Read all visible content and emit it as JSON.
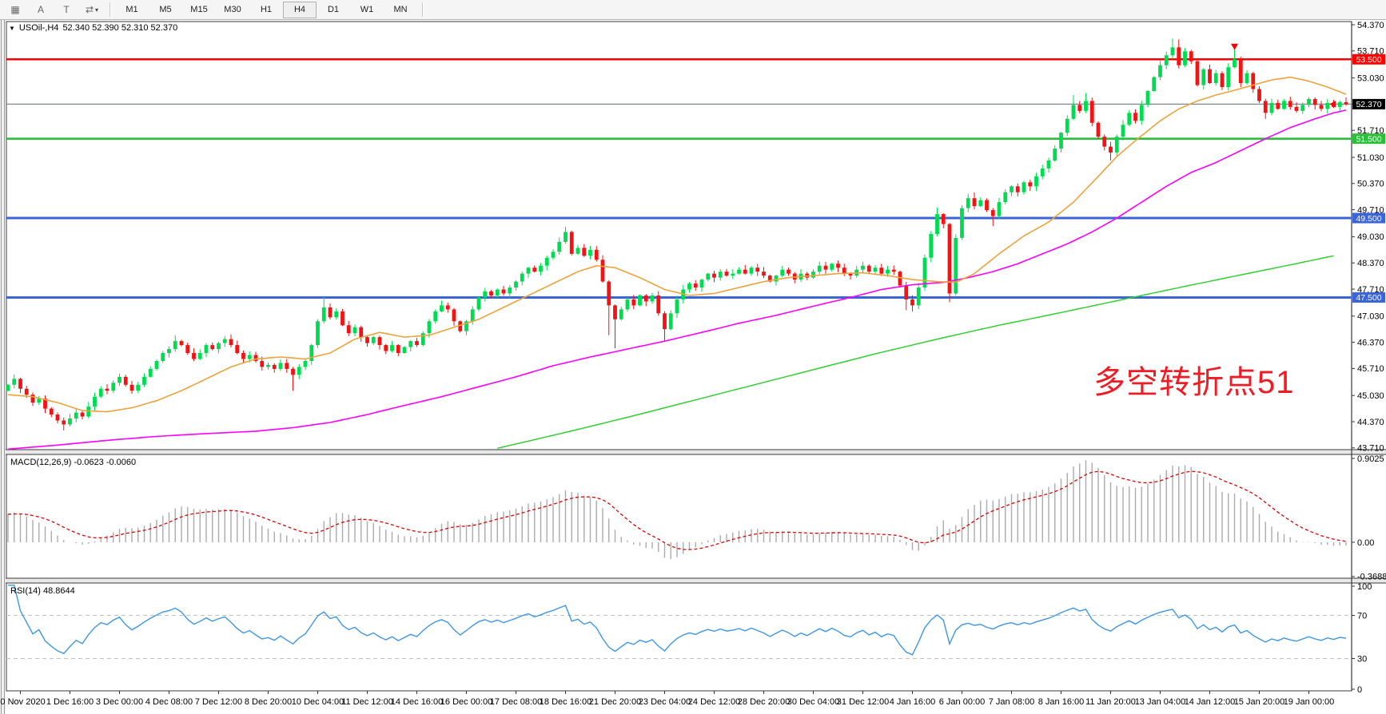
{
  "toolbar": {
    "icons": [
      {
        "name": "grid-icon",
        "glyph": "▦"
      },
      {
        "name": "text-insert-icon",
        "glyph": "A"
      },
      {
        "name": "text-label-icon",
        "glyph": "T"
      },
      {
        "name": "arrows-tool-icon",
        "glyph": "⇄",
        "caret": "▾"
      }
    ],
    "timeframes": [
      "M1",
      "M5",
      "M15",
      "M30",
      "H1",
      "H4",
      "D1",
      "W1",
      "MN"
    ],
    "active_timeframe": "H4"
  },
  "chart": {
    "collapse_arrow": "▼",
    "title_symbol": "USOil-,H4",
    "title_ohlc": "52.340 52.390 52.310 52.370"
  },
  "macd": {
    "label": "MACD(12,26,9) -0.0623 -0.0060",
    "axis": [
      "0.9025",
      "0.00",
      "-0.3688"
    ]
  },
  "rsi": {
    "label": "RSI(14) 48.8644",
    "axis": [
      "100",
      "70",
      "30",
      "0"
    ]
  },
  "annotation": {
    "text": "多空转折点51",
    "color": "#ee1c25"
  },
  "colors": {
    "up": "#00dc50",
    "down": "#f01414",
    "wick_up": "#00c846",
    "wick_down": "#e01010",
    "level_red": "#ff0000",
    "level_green": "#2dbe3c",
    "level_blue": "#3c64d9",
    "bid_line": "#80888f",
    "bid_badge": "#000000",
    "ma_fast": "#eda33c",
    "ma_mid": "#ff00ff",
    "ma_slow": "#32cd32",
    "macd_hist": "#ababab",
    "macd_signal": "#e00000",
    "rsi_line": "#3d96e8",
    "rsi_levels": "#c0c0c0",
    "panel_border": "#3a3a3a",
    "axis_text": "#000000",
    "badge_text": "#ffffff"
  },
  "chart_data": {
    "type": "candlestick",
    "symbol": "USOil",
    "timeframe": "H4",
    "ohlc_current": {
      "open": 52.34,
      "high": 52.39,
      "low": 52.31,
      "close": 52.37
    },
    "y_axis": {
      "min": 43.71,
      "max": 54.37,
      "ticks": [
        "54.370",
        "53.710",
        "53.030",
        "52.370",
        "51.710",
        "51.030",
        "50.370",
        "49.710",
        "49.030",
        "48.370",
        "47.710",
        "47.030",
        "46.370",
        "45.710",
        "45.030",
        "44.370",
        "43.710"
      ]
    },
    "x_axis": {
      "labels": [
        {
          "bar": 2,
          "text": "30 Nov 2020"
        },
        {
          "bar": 10,
          "text": "1 Dec 16:00"
        },
        {
          "bar": 18,
          "text": "3 Dec 00:00"
        },
        {
          "bar": 26,
          "text": "4 Dec 08:00"
        },
        {
          "bar": 34,
          "text": "7 Dec 12:00"
        },
        {
          "bar": 42,
          "text": "8 Dec 20:00"
        },
        {
          "bar": 50,
          "text": "10 Dec 04:00"
        },
        {
          "bar": 58,
          "text": "11 Dec 12:00"
        },
        {
          "bar": 66,
          "text": "14 Dec 16:00"
        },
        {
          "bar": 74,
          "text": "16 Dec 00:00"
        },
        {
          "bar": 82,
          "text": "17 Dec 08:00"
        },
        {
          "bar": 90,
          "text": "18 Dec 16:00"
        },
        {
          "bar": 98,
          "text": "21 Dec 20:00"
        },
        {
          "bar": 106,
          "text": "23 Dec 04:00"
        },
        {
          "bar": 114,
          "text": "24 Dec 12:00"
        },
        {
          "bar": 122,
          "text": "28 Dec 20:00"
        },
        {
          "bar": 130,
          "text": "30 Dec 04:00"
        },
        {
          "bar": 138,
          "text": "31 Dec 12:00"
        },
        {
          "bar": 146,
          "text": "4 Jan 16:00"
        },
        {
          "bar": 154,
          "text": "6 Jan 00:00"
        },
        {
          "bar": 162,
          "text": "7 Jan 08:00"
        },
        {
          "bar": 170,
          "text": "8 Jan 16:00"
        },
        {
          "bar": 178,
          "text": "11 Jan 20:00"
        },
        {
          "bar": 186,
          "text": "13 Jan 04:00"
        },
        {
          "bar": 194,
          "text": "14 Jan 12:00"
        },
        {
          "bar": 202,
          "text": "15 Jan 20:00"
        },
        {
          "bar": 210,
          "text": "19 Jan 00:00"
        }
      ]
    },
    "levels": [
      {
        "label": "53.500",
        "price": 53.5,
        "colorKey": "level_red",
        "width": 2.6
      },
      {
        "label": "51.500",
        "price": 51.5,
        "colorKey": "level_green",
        "width": 2.6
      },
      {
        "label": "49.500",
        "price": 49.5,
        "colorKey": "level_blue",
        "width": 3
      },
      {
        "label": "47.500",
        "price": 47.5,
        "colorKey": "level_blue",
        "width": 3
      }
    ],
    "bid": {
      "label": "52.370",
      "price": 52.37
    },
    "first_open": 45.15,
    "closes": [
      45.3,
      45.45,
      45.2,
      45.05,
      44.85,
      44.95,
      44.7,
      44.55,
      44.4,
      44.3,
      44.45,
      44.6,
      44.5,
      44.75,
      45.0,
      45.2,
      45.15,
      45.35,
      45.5,
      45.3,
      45.15,
      45.3,
      45.5,
      45.7,
      45.9,
      46.1,
      46.2,
      46.4,
      46.3,
      46.1,
      45.95,
      46.1,
      46.3,
      46.2,
      46.35,
      46.45,
      46.3,
      46.1,
      45.95,
      46.05,
      45.9,
      45.75,
      45.8,
      45.7,
      45.85,
      45.7,
      45.55,
      45.75,
      45.9,
      46.3,
      46.9,
      47.25,
      47.0,
      47.15,
      46.8,
      46.6,
      46.75,
      46.5,
      46.35,
      46.5,
      46.3,
      46.15,
      46.3,
      46.1,
      46.25,
      46.4,
      46.3,
      46.6,
      46.9,
      47.15,
      47.3,
      47.2,
      46.9,
      46.65,
      46.9,
      47.2,
      47.5,
      47.65,
      47.55,
      47.7,
      47.6,
      47.75,
      47.9,
      48.1,
      48.25,
      48.15,
      48.3,
      48.5,
      48.65,
      48.9,
      49.15,
      48.6,
      48.75,
      48.55,
      48.7,
      48.45,
      47.9,
      47.3,
      46.95,
      47.2,
      47.45,
      47.3,
      47.55,
      47.4,
      47.55,
      47.1,
      46.7,
      47.1,
      47.45,
      47.7,
      47.85,
      47.75,
      47.95,
      48.1,
      48.0,
      48.15,
      48.05,
      48.1,
      48.2,
      48.1,
      48.25,
      48.15,
      48.05,
      47.9,
      48.05,
      48.2,
      48.1,
      47.95,
      48.1,
      48.0,
      48.15,
      48.3,
      48.2,
      48.35,
      48.25,
      48.1,
      48.05,
      48.2,
      48.3,
      48.15,
      48.25,
      48.1,
      48.2,
      48.15,
      47.8,
      47.45,
      47.3,
      47.75,
      48.5,
      49.1,
      49.6,
      49.35,
      47.6,
      49.0,
      49.75,
      50.0,
      49.8,
      49.95,
      49.7,
      49.55,
      49.9,
      50.15,
      50.3,
      50.15,
      50.4,
      50.3,
      50.55,
      50.75,
      50.95,
      51.25,
      51.65,
      52.0,
      52.35,
      52.2,
      52.45,
      51.9,
      51.55,
      51.3,
      51.15,
      51.55,
      51.85,
      52.15,
      51.95,
      52.35,
      52.7,
      53.05,
      53.35,
      53.6,
      53.8,
      53.35,
      53.7,
      53.45,
      52.85,
      53.25,
      52.9,
      53.15,
      52.8,
      53.3,
      53.5,
      52.9,
      53.15,
      52.75,
      52.45,
      52.15,
      52.4,
      52.25,
      52.45,
      52.3,
      52.2,
      52.35,
      52.5,
      52.35,
      52.25,
      52.4,
      52.3,
      52.42,
      52.37
    ],
    "wick_overrides": {
      "9": {
        "l": 44.15
      },
      "27": {
        "h": 46.55
      },
      "46": {
        "l": 45.15
      },
      "51": {
        "h": 47.52
      },
      "70": {
        "h": 47.42
      },
      "90": {
        "h": 49.28
      },
      "97": {
        "l": 46.55
      },
      "98": {
        "l": 46.22
      },
      "106": {
        "l": 46.38
      },
      "145": {
        "l": 47.18
      },
      "146": {
        "l": 47.15
      },
      "150": {
        "h": 49.77
      },
      "152": {
        "l": 47.38
      },
      "156": {
        "h": 50.15
      },
      "159": {
        "l": 49.3
      },
      "172": {
        "h": 52.6
      },
      "174": {
        "h": 52.65
      },
      "178": {
        "l": 50.95
      },
      "188": {
        "h": 54.02
      },
      "189": {
        "h": 54.0
      },
      "198": {
        "h": 53.79
      },
      "203": {
        "l": 52.0
      }
    },
    "moving_averages": {
      "fast_orange": [
        [
          0,
          45.05
        ],
        [
          4,
          45.0
        ],
        [
          8,
          44.85
        ],
        [
          12,
          44.65
        ],
        [
          16,
          44.62
        ],
        [
          20,
          44.72
        ],
        [
          24,
          44.9
        ],
        [
          28,
          45.15
        ],
        [
          32,
          45.45
        ],
        [
          36,
          45.75
        ],
        [
          40,
          45.95
        ],
        [
          44,
          46.0
        ],
        [
          48,
          45.95
        ],
        [
          52,
          46.1
        ],
        [
          56,
          46.45
        ],
        [
          60,
          46.62
        ],
        [
          64,
          46.5
        ],
        [
          68,
          46.55
        ],
        [
          72,
          46.75
        ],
        [
          76,
          46.95
        ],
        [
          80,
          47.25
        ],
        [
          84,
          47.55
        ],
        [
          88,
          47.85
        ],
        [
          92,
          48.15
        ],
        [
          95,
          48.3
        ],
        [
          98,
          48.25
        ],
        [
          102,
          48.0
        ],
        [
          106,
          47.7
        ],
        [
          110,
          47.55
        ],
        [
          114,
          47.6
        ],
        [
          118,
          47.75
        ],
        [
          122,
          47.9
        ],
        [
          126,
          48.0
        ],
        [
          130,
          48.05
        ],
        [
          134,
          48.1
        ],
        [
          138,
          48.12
        ],
        [
          142,
          48.05
        ],
        [
          146,
          47.95
        ],
        [
          150,
          47.9
        ],
        [
          153,
          47.88
        ],
        [
          156,
          48.1
        ],
        [
          160,
          48.6
        ],
        [
          164,
          49.05
        ],
        [
          168,
          49.4
        ],
        [
          172,
          49.9
        ],
        [
          176,
          50.55
        ],
        [
          179,
          51.05
        ],
        [
          182,
          51.45
        ],
        [
          186,
          51.95
        ],
        [
          189,
          52.25
        ],
        [
          192,
          52.45
        ],
        [
          195,
          52.6
        ],
        [
          198,
          52.72
        ],
        [
          201,
          52.85
        ],
        [
          204,
          52.98
        ],
        [
          207,
          53.05
        ],
        [
          210,
          52.95
        ],
        [
          213,
          52.8
        ],
        [
          216,
          52.62
        ]
      ],
      "mid_magenta": [
        [
          0,
          43.68
        ],
        [
          8,
          43.78
        ],
        [
          16,
          43.9
        ],
        [
          24,
          44.0
        ],
        [
          32,
          44.07
        ],
        [
          40,
          44.13
        ],
        [
          46,
          44.22
        ],
        [
          52,
          44.35
        ],
        [
          58,
          44.55
        ],
        [
          64,
          44.78
        ],
        [
          70,
          45.0
        ],
        [
          76,
          45.25
        ],
        [
          82,
          45.5
        ],
        [
          88,
          45.78
        ],
        [
          94,
          46.0
        ],
        [
          100,
          46.2
        ],
        [
          106,
          46.4
        ],
        [
          112,
          46.62
        ],
        [
          118,
          46.85
        ],
        [
          124,
          47.05
        ],
        [
          130,
          47.28
        ],
        [
          136,
          47.5
        ],
        [
          141,
          47.7
        ],
        [
          146,
          47.82
        ],
        [
          151,
          47.88
        ],
        [
          155,
          48.0
        ],
        [
          159,
          48.15
        ],
        [
          163,
          48.35
        ],
        [
          167,
          48.6
        ],
        [
          171,
          48.85
        ],
        [
          175,
          49.15
        ],
        [
          179,
          49.5
        ],
        [
          183,
          49.9
        ],
        [
          187,
          50.3
        ],
        [
          191,
          50.65
        ],
        [
          195,
          50.9
        ],
        [
          199,
          51.2
        ],
        [
          203,
          51.5
        ],
        [
          207,
          51.78
        ],
        [
          211,
          52.0
        ],
        [
          214,
          52.15
        ],
        [
          216,
          52.22
        ]
      ],
      "slow_green": [
        [
          79,
          43.7
        ],
        [
          90,
          44.1
        ],
        [
          100,
          44.48
        ],
        [
          110,
          44.88
        ],
        [
          120,
          45.28
        ],
        [
          130,
          45.68
        ],
        [
          140,
          46.08
        ],
        [
          150,
          46.45
        ],
        [
          160,
          46.8
        ],
        [
          170,
          47.12
        ],
        [
          180,
          47.45
        ],
        [
          190,
          47.78
        ],
        [
          200,
          48.1
        ],
        [
          207,
          48.32
        ],
        [
          214,
          48.55
        ]
      ]
    },
    "macd_panel": {
      "params": [
        12,
        26,
        9
      ],
      "max": 0.9025,
      "min": -0.3688,
      "current_main": -0.0623,
      "current_signal": -0.006
    },
    "rsi_panel": {
      "period": 14,
      "current": 48.8644,
      "levels": [
        70,
        30
      ]
    },
    "indicator_prehistory": {
      "bars": 60,
      "from": 42.6,
      "to": 45.2
    },
    "markers": [
      {
        "type": "sell-arrow",
        "bar": 198,
        "price": 53.73
      },
      {
        "type": "price-pointer",
        "bar": 214,
        "price": 52.37
      }
    ]
  }
}
